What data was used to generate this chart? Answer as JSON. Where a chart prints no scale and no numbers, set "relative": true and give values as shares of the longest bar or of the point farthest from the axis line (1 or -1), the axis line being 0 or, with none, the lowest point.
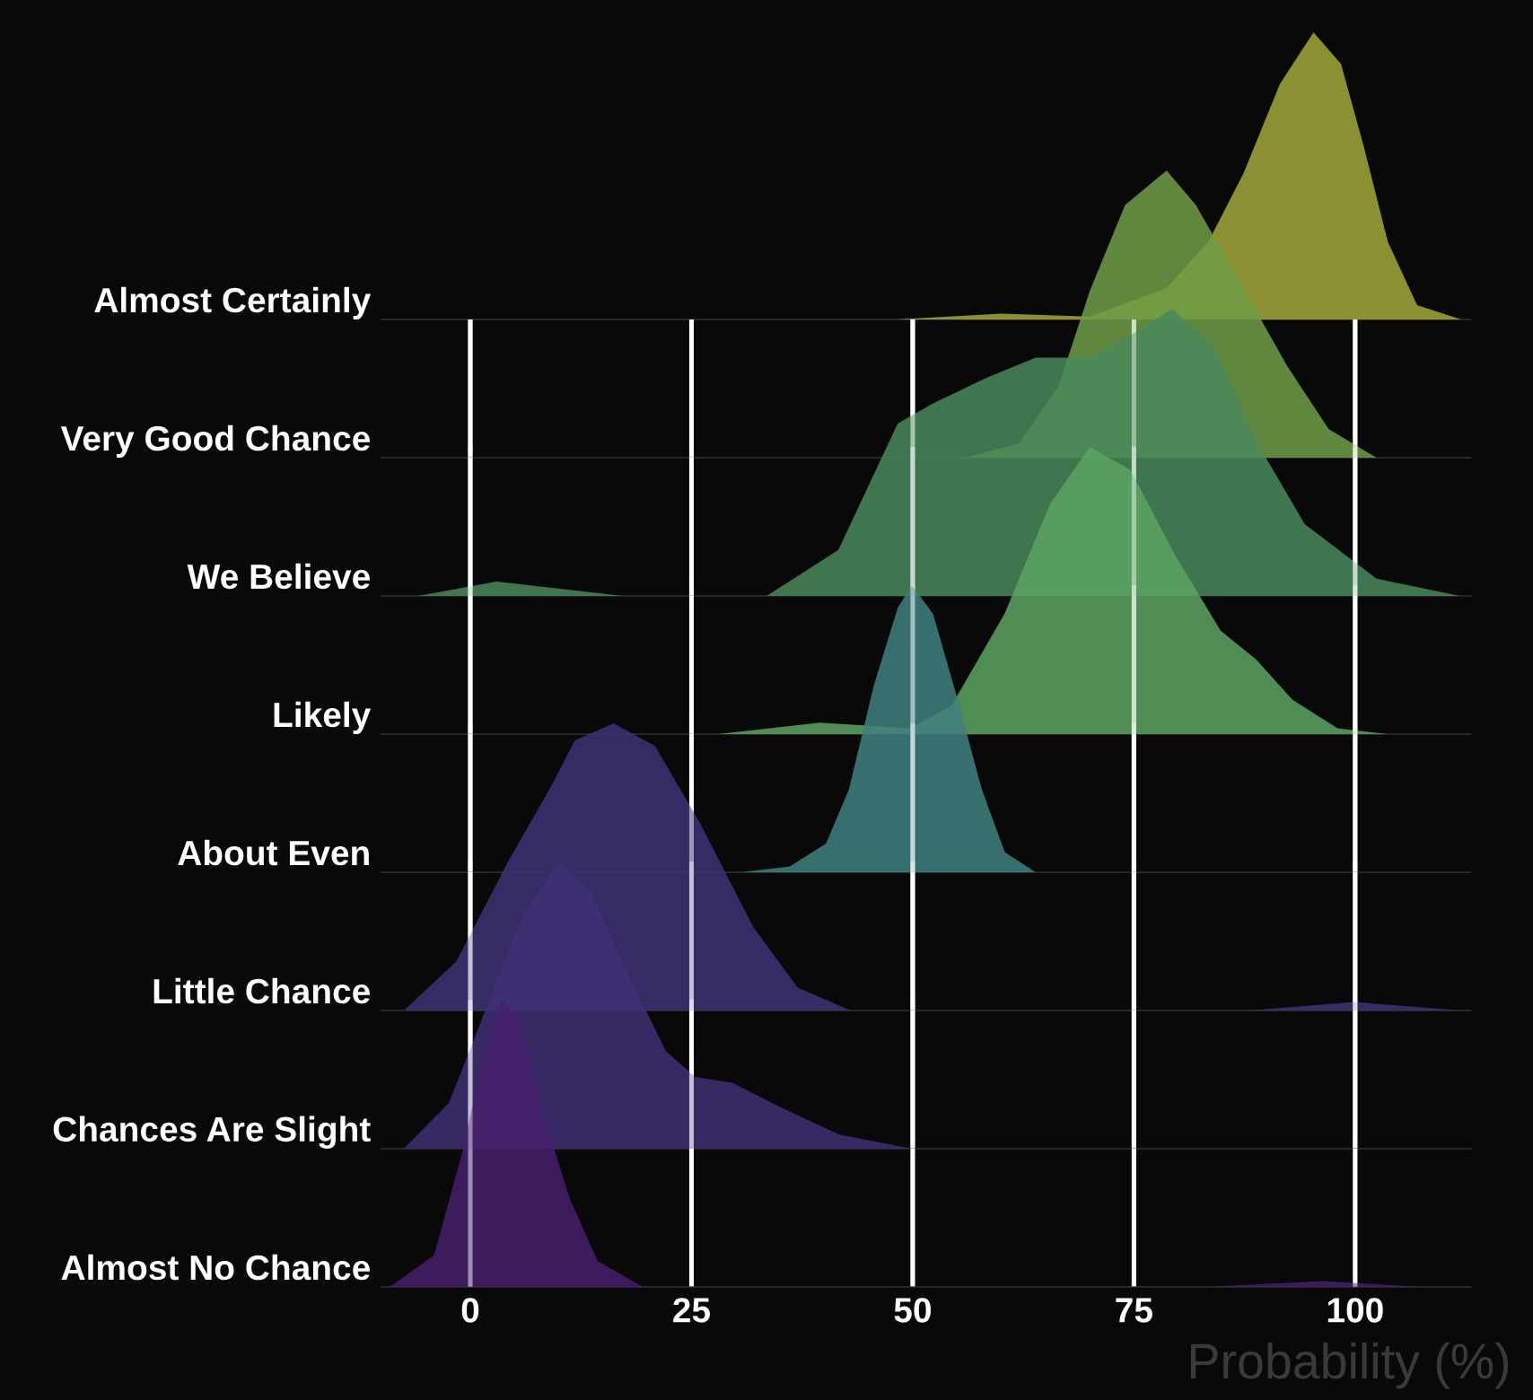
{
  "chart_data": [
    {
      "type": "area",
      "relative": true,
      "xlim": [
        -10,
        113
      ],
      "xticks": [
        0,
        25,
        50,
        75,
        100
      ],
      "tick_labels": false,
      "series": [
        {
          "name": "Almost Certainly",
          "color": "#a2a83a",
          "x": [
            48,
            60,
            70,
            78.7,
            83.4,
            87.4,
            91.5,
            95.3,
            98.4,
            101,
            103.7,
            107,
            112
          ],
          "values": [
            0,
            0.02,
            0.01,
            0.11,
            0.27,
            0.51,
            0.82,
            1.0,
            0.89,
            0.6,
            0.27,
            0.05,
            0
          ]
        }
      ]
    },
    {
      "type": "area",
      "relative": true,
      "xlim": [
        -10,
        113
      ],
      "xticks": [
        0,
        25,
        50,
        75,
        100
      ],
      "tick_labels": false,
      "grid": "x",
      "series": [
        {
          "name": "Very Good Chance",
          "color": "#6e9e48",
          "x": [
            56,
            62,
            66.5,
            70,
            74,
            78.7,
            82,
            86.8,
            92.3,
            97,
            102.4
          ],
          "values": [
            0,
            0.05,
            0.25,
            0.58,
            0.88,
            1.0,
            0.88,
            0.62,
            0.32,
            0.1,
            0
          ]
        }
      ]
    },
    {
      "type": "area",
      "relative": true,
      "xlim": [
        -10,
        113
      ],
      "xticks": [
        0,
        25,
        50,
        75,
        100
      ],
      "tick_labels": false,
      "grid": "x",
      "series": [
        {
          "name": "We Believe",
          "color": "#4a8a5c",
          "x": [
            -5.9,
            3,
            17.2,
            null,
            33.5,
            41.6,
            48.3,
            52.3,
            58.4,
            63.9,
            70,
            75.3,
            79.3,
            84.2,
            88.8,
            94.3,
            102.4,
            111.8
          ],
          "values": [
            0,
            0.05,
            0,
            null,
            0,
            0.16,
            0.6,
            0.67,
            0.76,
            0.83,
            0.83,
            0.92,
            1.0,
            0.86,
            0.54,
            0.25,
            0.06,
            0
          ]
        }
      ]
    },
    {
      "type": "area",
      "relative": true,
      "xlim": [
        -10,
        113
      ],
      "xticks": [
        0,
        25,
        50,
        75,
        100
      ],
      "tick_labels": false,
      "grid": "x",
      "series": [
        {
          "name": "Likely",
          "color": "#5ca462",
          "x": [
            28,
            39.5,
            49.7,
            54.4,
            60.4,
            65.5,
            70,
            74.6,
            79.7,
            84.8,
            88.8,
            92.9,
            98,
            103.7
          ],
          "values": [
            0,
            0.04,
            0.02,
            0.1,
            0.42,
            0.8,
            1.0,
            0.92,
            0.62,
            0.36,
            0.26,
            0.12,
            0.02,
            0
          ]
        }
      ]
    },
    {
      "type": "area",
      "relative": true,
      "xlim": [
        -10,
        113
      ],
      "xticks": [
        0,
        25,
        50,
        75,
        100
      ],
      "tick_labels": false,
      "grid": "x",
      "series": [
        {
          "name": "About Even",
          "color": "#3f8080",
          "x": [
            30.6,
            36.1,
            40.2,
            42.8,
            45.6,
            48.3,
            49.9,
            52.3,
            55,
            57.8,
            60.4,
            63.9
          ],
          "values": [
            0,
            0.02,
            0.1,
            0.29,
            0.65,
            0.92,
            1.0,
            0.9,
            0.61,
            0.29,
            0.07,
            0
          ]
        }
      ]
    },
    {
      "type": "area",
      "relative": true,
      "xlim": [
        -10,
        113
      ],
      "xticks": [
        0,
        25,
        50,
        75,
        100
      ],
      "tick_labels": false,
      "grid": "x",
      "series": [
        {
          "name": "Little Chance",
          "color": "#3d3276",
          "x": [
            -7.5,
            -1.6,
            4.3,
            9.3,
            11.8,
            16.2,
            20.9,
            26,
            32,
            37,
            43,
            null,
            88,
            99.8,
            112
          ],
          "values": [
            0,
            0.17,
            0.52,
            0.79,
            0.94,
            1.0,
            0.92,
            0.65,
            0.29,
            0.08,
            0,
            null,
            0,
            0.03,
            0
          ]
        }
      ]
    },
    {
      "type": "area",
      "relative": true,
      "xlim": [
        -10,
        113
      ],
      "xticks": [
        0,
        25,
        50,
        75,
        100
      ],
      "tick_labels": false,
      "grid": "x",
      "series": [
        {
          "name": "Chances Are Slight",
          "color": "#3f2f74",
          "x": [
            -7.5,
            -2.4,
            1.8,
            6,
            10.1,
            13.6,
            17.8,
            22.1,
            25.4,
            29.6,
            34.7,
            41.6,
            49.9
          ],
          "values": [
            0,
            0.16,
            0.49,
            0.82,
            1.0,
            0.9,
            0.61,
            0.34,
            0.25,
            0.23,
            0.15,
            0.05,
            0
          ]
        }
      ]
    },
    {
      "type": "area",
      "relative": true,
      "xlabel": "Probability (%)",
      "xlim": [
        -10,
        113
      ],
      "xticks": [
        0,
        25,
        50,
        75,
        100
      ],
      "tick_labels": "x",
      "grid": "x",
      "series": [
        {
          "name": "Almost No Chance",
          "color": "#45206c",
          "x": [
            -9.1,
            -4.1,
            -0.8,
            1.4,
            3.5,
            5.7,
            8.1,
            11.2,
            14.4,
            19.5,
            null,
            83,
            96.3,
            107.5
          ],
          "values": [
            0,
            0.11,
            0.48,
            0.8,
            1.0,
            0.93,
            0.62,
            0.31,
            0.09,
            0,
            null,
            0,
            0.02,
            0
          ]
        }
      ]
    }
  ]
}
